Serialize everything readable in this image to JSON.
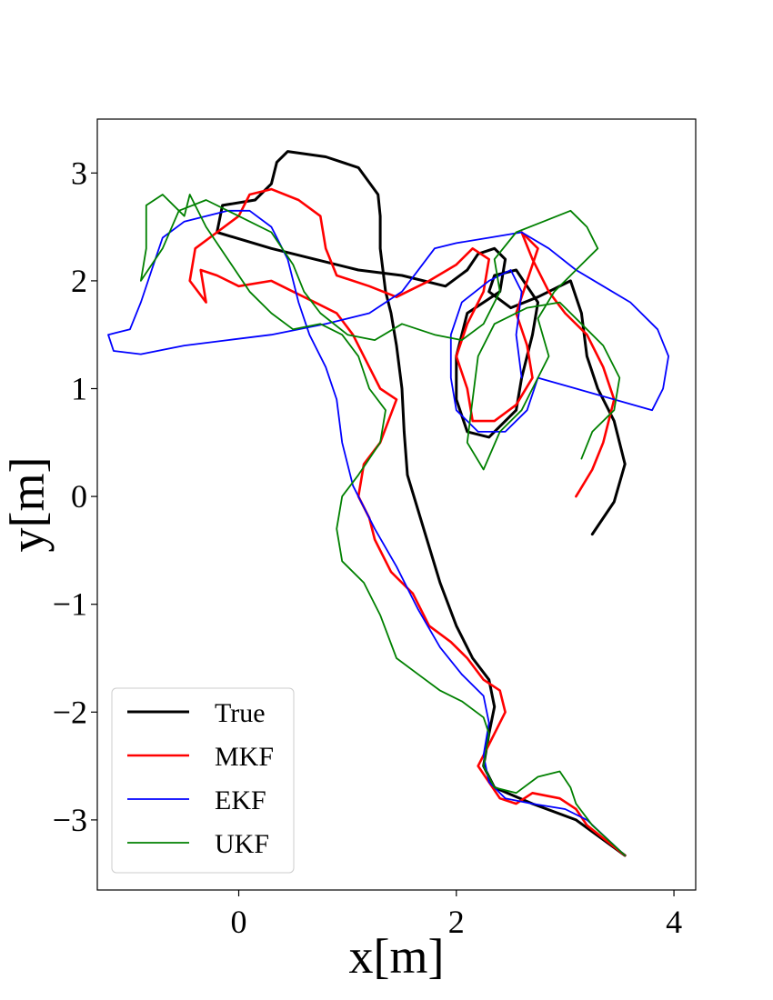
{
  "chart_data": {
    "type": "line",
    "title": "",
    "xlabel": "x[m]",
    "ylabel": "y[m]",
    "xlim": [
      -1.3,
      4.2
    ],
    "ylim": [
      -3.65,
      3.5
    ],
    "xticks": [
      0,
      2,
      4
    ],
    "yticks": [
      3,
      2,
      1,
      0,
      -1,
      -2,
      -3
    ],
    "xtick_labels": [
      "0",
      "2",
      "4"
    ],
    "ytick_labels": [
      "3",
      "2",
      "1",
      "0",
      "−1",
      "−2",
      "−3"
    ],
    "grid": false,
    "legend_position": "lower-left",
    "series": [
      {
        "name": "True",
        "color": "#000000",
        "points": [
          [
            3.55,
            -3.33
          ],
          [
            3.1,
            -3.0
          ],
          [
            2.7,
            -2.85
          ],
          [
            2.35,
            -2.7
          ],
          [
            2.25,
            -2.5
          ],
          [
            2.3,
            -2.2
          ],
          [
            2.35,
            -1.95
          ],
          [
            2.3,
            -1.7
          ],
          [
            2.15,
            -1.5
          ],
          [
            2.0,
            -1.2
          ],
          [
            1.85,
            -0.8
          ],
          [
            1.7,
            -0.3
          ],
          [
            1.55,
            0.2
          ],
          [
            1.52,
            0.6
          ],
          [
            1.5,
            1.0
          ],
          [
            1.45,
            1.4
          ],
          [
            1.4,
            1.7
          ],
          [
            1.35,
            1.9
          ],
          [
            1.3,
            2.3
          ],
          [
            1.3,
            2.6
          ],
          [
            1.28,
            2.8
          ],
          [
            1.1,
            3.05
          ],
          [
            0.8,
            3.15
          ],
          [
            0.45,
            3.2
          ],
          [
            0.35,
            3.1
          ],
          [
            0.3,
            2.9
          ],
          [
            0.15,
            2.75
          ],
          [
            -0.15,
            2.7
          ],
          [
            -0.2,
            2.45
          ],
          [
            0.3,
            2.3
          ],
          [
            0.7,
            2.2
          ],
          [
            1.1,
            2.1
          ],
          [
            1.5,
            2.05
          ],
          [
            1.9,
            1.95
          ],
          [
            2.1,
            2.1
          ],
          [
            2.2,
            2.25
          ],
          [
            2.35,
            2.3
          ],
          [
            2.45,
            2.2
          ],
          [
            2.4,
            1.9
          ],
          [
            2.1,
            1.7
          ],
          [
            2.0,
            1.3
          ],
          [
            2.0,
            0.9
          ],
          [
            2.1,
            0.6
          ],
          [
            2.3,
            0.55
          ],
          [
            2.55,
            0.8
          ],
          [
            2.6,
            1.1
          ],
          [
            2.7,
            1.5
          ],
          [
            2.75,
            1.8
          ],
          [
            2.55,
            2.1
          ],
          [
            2.35,
            2.05
          ],
          [
            2.3,
            1.9
          ],
          [
            2.5,
            1.75
          ],
          [
            2.75,
            1.85
          ],
          [
            3.05,
            2.0
          ],
          [
            3.15,
            1.7
          ],
          [
            3.2,
            1.3
          ],
          [
            3.3,
            1.0
          ],
          [
            3.45,
            0.7
          ],
          [
            3.55,
            0.3
          ],
          [
            3.45,
            -0.05
          ],
          [
            3.25,
            -0.35
          ]
        ]
      },
      {
        "name": "MKF",
        "color": "#ff0000",
        "points": [
          [
            3.55,
            -3.33
          ],
          [
            3.2,
            -3.05
          ],
          [
            3.1,
            -2.9
          ],
          [
            2.95,
            -2.8
          ],
          [
            2.7,
            -2.75
          ],
          [
            2.55,
            -2.85
          ],
          [
            2.4,
            -2.8
          ],
          [
            2.3,
            -2.65
          ],
          [
            2.2,
            -2.5
          ],
          [
            2.3,
            -2.3
          ],
          [
            2.45,
            -2.0
          ],
          [
            2.4,
            -1.8
          ],
          [
            2.25,
            -1.7
          ],
          [
            2.1,
            -1.5
          ],
          [
            1.95,
            -1.35
          ],
          [
            1.75,
            -1.2
          ],
          [
            1.6,
            -0.9
          ],
          [
            1.4,
            -0.7
          ],
          [
            1.25,
            -0.4
          ],
          [
            1.2,
            -0.2
          ],
          [
            1.1,
            0.0
          ],
          [
            1.15,
            0.3
          ],
          [
            1.3,
            0.5
          ],
          [
            1.45,
            0.9
          ],
          [
            1.3,
            1.0
          ],
          [
            1.2,
            1.2
          ],
          [
            1.05,
            1.5
          ],
          [
            0.9,
            1.7
          ],
          [
            0.7,
            1.8
          ],
          [
            0.5,
            1.9
          ],
          [
            0.3,
            2.0
          ],
          [
            0.0,
            1.95
          ],
          [
            -0.2,
            2.05
          ],
          [
            -0.35,
            2.1
          ],
          [
            -0.3,
            1.8
          ],
          [
            -0.45,
            2.0
          ],
          [
            -0.4,
            2.3
          ],
          [
            -0.2,
            2.45
          ],
          [
            0.0,
            2.6
          ],
          [
            0.1,
            2.8
          ],
          [
            0.3,
            2.85
          ],
          [
            0.55,
            2.75
          ],
          [
            0.75,
            2.6
          ],
          [
            0.8,
            2.3
          ],
          [
            0.9,
            2.05
          ],
          [
            1.2,
            1.95
          ],
          [
            1.45,
            1.85
          ],
          [
            1.75,
            2.0
          ],
          [
            2.0,
            2.15
          ],
          [
            2.15,
            2.3
          ],
          [
            2.3,
            2.2
          ],
          [
            2.25,
            1.9
          ],
          [
            2.1,
            1.6
          ],
          [
            2.0,
            1.3
          ],
          [
            2.1,
            1.0
          ],
          [
            2.15,
            0.7
          ],
          [
            2.35,
            0.7
          ],
          [
            2.55,
            0.85
          ],
          [
            2.7,
            1.1
          ],
          [
            2.65,
            1.4
          ],
          [
            2.55,
            1.7
          ],
          [
            2.65,
            2.0
          ],
          [
            2.75,
            2.3
          ],
          [
            2.6,
            2.45
          ],
          [
            2.7,
            2.2
          ],
          [
            2.85,
            1.9
          ],
          [
            3.0,
            1.7
          ],
          [
            3.2,
            1.5
          ],
          [
            3.35,
            1.2
          ],
          [
            3.45,
            0.9
          ],
          [
            3.35,
            0.5
          ],
          [
            3.25,
            0.25
          ],
          [
            3.1,
            0.0
          ]
        ]
      },
      {
        "name": "EKF",
        "color": "#0000ff",
        "points": [
          [
            3.55,
            -3.33
          ],
          [
            3.2,
            -3.0
          ],
          [
            3.0,
            -2.9
          ],
          [
            2.7,
            -2.85
          ],
          [
            2.45,
            -2.8
          ],
          [
            2.3,
            -2.65
          ],
          [
            2.25,
            -2.4
          ],
          [
            2.3,
            -2.1
          ],
          [
            2.25,
            -1.85
          ],
          [
            2.05,
            -1.65
          ],
          [
            1.85,
            -1.4
          ],
          [
            1.65,
            -1.05
          ],
          [
            1.45,
            -0.65
          ],
          [
            1.25,
            -0.3
          ],
          [
            1.05,
            0.1
          ],
          [
            0.95,
            0.5
          ],
          [
            0.9,
            0.9
          ],
          [
            0.8,
            1.2
          ],
          [
            0.65,
            1.5
          ],
          [
            0.55,
            1.8
          ],
          [
            0.45,
            2.2
          ],
          [
            0.3,
            2.5
          ],
          [
            0.1,
            2.65
          ],
          [
            -0.1,
            2.65
          ],
          [
            -0.3,
            2.6
          ],
          [
            -0.5,
            2.55
          ],
          [
            -0.7,
            2.4
          ],
          [
            -0.8,
            2.1
          ],
          [
            -0.9,
            1.8
          ],
          [
            -1.0,
            1.55
          ],
          [
            -1.2,
            1.5
          ],
          [
            -1.15,
            1.35
          ],
          [
            -0.9,
            1.32
          ],
          [
            -0.5,
            1.4
          ],
          [
            -0.1,
            1.45
          ],
          [
            0.3,
            1.5
          ],
          [
            0.8,
            1.6
          ],
          [
            1.2,
            1.7
          ],
          [
            1.5,
            1.9
          ],
          [
            1.8,
            2.3
          ],
          [
            2.0,
            2.35
          ],
          [
            2.3,
            2.4
          ],
          [
            2.6,
            2.45
          ],
          [
            2.85,
            2.3
          ],
          [
            3.1,
            2.1
          ],
          [
            3.35,
            1.95
          ],
          [
            3.6,
            1.8
          ],
          [
            3.85,
            1.55
          ],
          [
            3.95,
            1.3
          ],
          [
            3.9,
            1.0
          ],
          [
            3.8,
            0.8
          ],
          [
            2.75,
            1.1
          ],
          [
            2.65,
            0.8
          ],
          [
            2.45,
            0.6
          ],
          [
            2.2,
            0.6
          ],
          [
            2.0,
            0.8
          ],
          [
            1.95,
            1.1
          ],
          [
            1.95,
            1.5
          ],
          [
            2.05,
            1.8
          ],
          [
            2.3,
            2.0
          ],
          [
            2.5,
            2.1
          ],
          [
            2.6,
            1.9
          ],
          [
            2.55,
            1.5
          ],
          [
            2.6,
            1.1
          ]
        ]
      },
      {
        "name": "UKF",
        "color": "#008000",
        "points": [
          [
            3.55,
            -3.33
          ],
          [
            3.25,
            -3.05
          ],
          [
            3.1,
            -2.85
          ],
          [
            3.05,
            -2.7
          ],
          [
            2.95,
            -2.55
          ],
          [
            2.75,
            -2.6
          ],
          [
            2.55,
            -2.75
          ],
          [
            2.35,
            -2.7
          ],
          [
            2.25,
            -2.5
          ],
          [
            2.3,
            -2.2
          ],
          [
            2.25,
            -2.05
          ],
          [
            2.05,
            -1.9
          ],
          [
            1.85,
            -1.8
          ],
          [
            1.65,
            -1.65
          ],
          [
            1.45,
            -1.5
          ],
          [
            1.3,
            -1.1
          ],
          [
            1.15,
            -0.8
          ],
          [
            0.95,
            -0.6
          ],
          [
            0.9,
            -0.3
          ],
          [
            0.95,
            0.0
          ],
          [
            1.1,
            0.2
          ],
          [
            1.3,
            0.5
          ],
          [
            1.35,
            0.8
          ],
          [
            1.2,
            1.0
          ],
          [
            1.1,
            1.3
          ],
          [
            0.95,
            1.5
          ],
          [
            0.75,
            1.6
          ],
          [
            0.5,
            1.55
          ],
          [
            0.3,
            1.7
          ],
          [
            0.1,
            1.9
          ],
          [
            -0.1,
            2.2
          ],
          [
            -0.3,
            2.5
          ],
          [
            -0.45,
            2.8
          ],
          [
            -0.5,
            2.6
          ],
          [
            -0.7,
            2.8
          ],
          [
            -0.85,
            2.7
          ],
          [
            -0.85,
            2.3
          ],
          [
            -0.9,
            2.0
          ],
          [
            -0.7,
            2.3
          ],
          [
            -0.55,
            2.65
          ],
          [
            -0.3,
            2.75
          ],
          [
            0.0,
            2.6
          ],
          [
            0.3,
            2.45
          ],
          [
            0.5,
            2.15
          ],
          [
            0.6,
            1.9
          ],
          [
            0.75,
            1.7
          ],
          [
            1.0,
            1.5
          ],
          [
            1.25,
            1.45
          ],
          [
            1.5,
            1.6
          ],
          [
            1.8,
            1.5
          ],
          [
            2.05,
            1.45
          ],
          [
            2.25,
            1.6
          ],
          [
            2.4,
            1.9
          ],
          [
            2.35,
            2.2
          ],
          [
            2.55,
            2.45
          ],
          [
            2.8,
            2.55
          ],
          [
            3.05,
            2.65
          ],
          [
            3.2,
            2.5
          ],
          [
            3.3,
            2.3
          ],
          [
            3.1,
            2.1
          ],
          [
            2.9,
            1.9
          ],
          [
            2.75,
            1.65
          ],
          [
            2.85,
            1.3
          ],
          [
            2.7,
            1.0
          ],
          [
            2.6,
            0.8
          ],
          [
            2.4,
            0.6
          ],
          [
            2.25,
            0.25
          ],
          [
            2.1,
            0.5
          ],
          [
            2.15,
            0.9
          ],
          [
            2.2,
            1.3
          ],
          [
            2.35,
            1.6
          ],
          [
            2.65,
            1.75
          ],
          [
            2.95,
            1.8
          ],
          [
            3.15,
            1.6
          ],
          [
            3.35,
            1.4
          ],
          [
            3.5,
            1.1
          ],
          [
            3.45,
            0.8
          ],
          [
            3.25,
            0.6
          ],
          [
            3.15,
            0.35
          ]
        ]
      }
    ]
  }
}
